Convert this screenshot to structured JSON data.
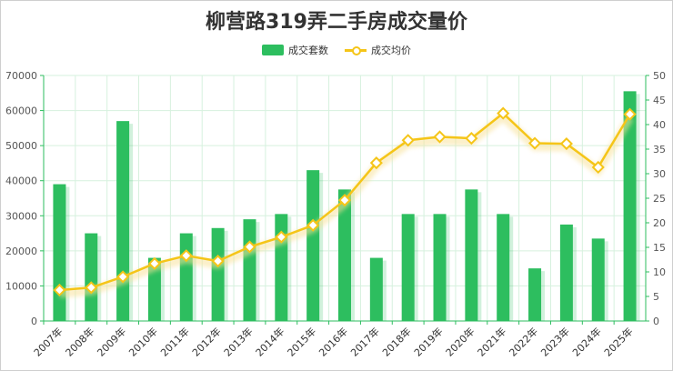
{
  "chart_data": {
    "type": "bar+line",
    "title": "柳营路319弄二手房成交量价",
    "categories": [
      "2007年",
      "2008年",
      "2009年",
      "2010年",
      "2011年",
      "2012年",
      "2013年",
      "2014年",
      "2015年",
      "2016年",
      "2017年",
      "2018年",
      "2019年",
      "2020年",
      "2021年",
      "2022年",
      "2023年",
      "2024年",
      "2025年"
    ],
    "series": [
      {
        "name": "成交套数",
        "type": "bar",
        "axis": "left",
        "color": "#2dbe5f",
        "values": [
          39000,
          25000,
          57000,
          18000,
          25000,
          26500,
          29000,
          30500,
          43000,
          37500,
          18000,
          30500,
          30500,
          37500,
          30500,
          15000,
          27500,
          23500,
          65500
        ]
      },
      {
        "name": "成交均价",
        "type": "line",
        "axis": "right",
        "color": "#f5c518",
        "values": [
          6.3,
          6.8,
          9.0,
          11.7,
          13.3,
          12.2,
          15.1,
          17.1,
          19.5,
          24.6,
          32.2,
          36.8,
          37.5,
          37.2,
          42.3,
          36.2,
          36.1,
          31.3,
          42.1
        ]
      }
    ],
    "yaxis_left": {
      "min": 0,
      "max": 70000,
      "ticks": [
        0,
        10000,
        20000,
        30000,
        40000,
        50000,
        60000,
        70000
      ]
    },
    "yaxis_right": {
      "min": 0,
      "max": 50,
      "ticks": [
        0,
        5,
        10,
        15,
        20,
        25,
        30,
        35,
        40,
        45,
        50
      ]
    },
    "grid": true,
    "legend_position": "top-center"
  }
}
